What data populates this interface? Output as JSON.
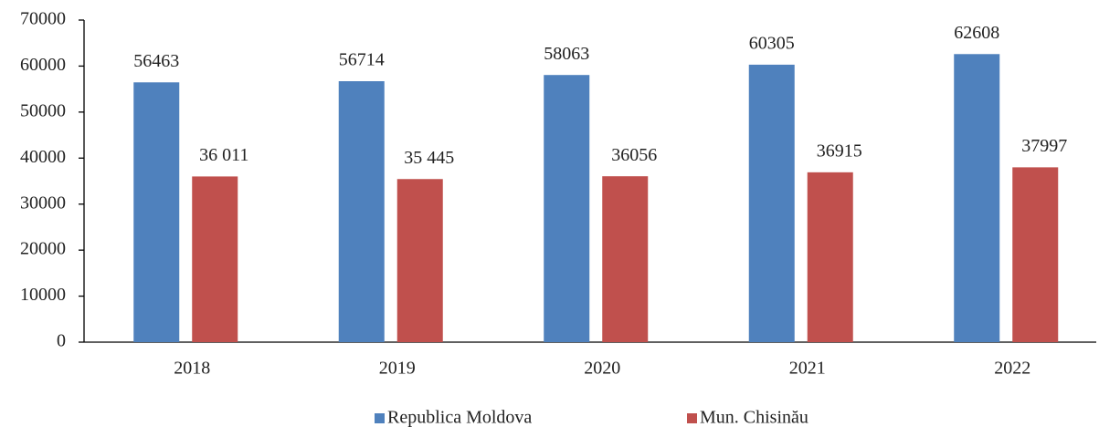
{
  "chart_data": {
    "type": "bar",
    "categories": [
      "2018",
      "2019",
      "2020",
      "2021",
      "2022"
    ],
    "series": [
      {
        "name": "Republica Moldova",
        "color": "#4f81bd",
        "values": [
          56463,
          56714,
          58063,
          60305,
          62608
        ]
      },
      {
        "name": "Mun. Chisinău",
        "color": "#c0504d",
        "values": [
          36011,
          35445,
          36056,
          36915,
          37997
        ],
        "value_labels": [
          "36 011",
          "35 445",
          "36056",
          "36915",
          "37997"
        ]
      }
    ],
    "ylim": [
      0,
      70000
    ],
    "yticks": [
      0,
      10000,
      20000,
      30000,
      40000,
      50000,
      60000,
      70000
    ],
    "legend": "bottom"
  }
}
